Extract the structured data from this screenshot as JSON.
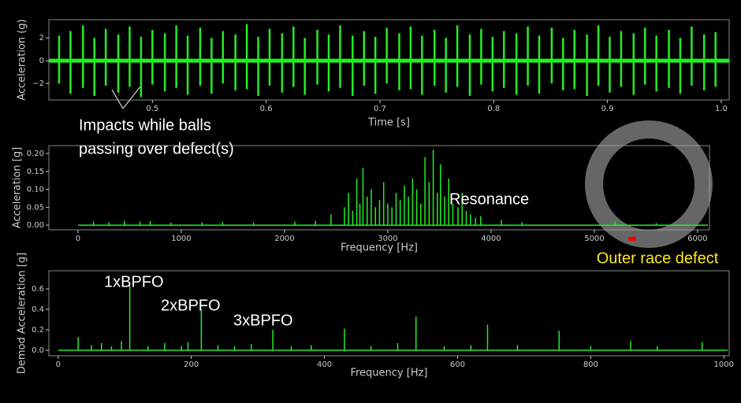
{
  "chart_data": [
    {
      "type": "impulse",
      "xlabel": "Time [s]",
      "ylabel": "Acceleration (g)",
      "color": "#22ee22",
      "xlim": [
        0.409,
        1.007
      ],
      "ylim": [
        -3.45,
        3.6
      ],
      "xticks": [
        0.5,
        0.6,
        0.7,
        0.8,
        0.9,
        {
          "value": 1.0,
          "label": "1.0"
        }
      ],
      "yticks": [
        {
          "value": -2,
          "label": "−2"
        },
        0,
        2
      ],
      "x": [
        0.418,
        0.428,
        0.439,
        0.449,
        0.459,
        0.47,
        0.48,
        0.49,
        0.5,
        0.511,
        0.521,
        0.531,
        0.542,
        0.552,
        0.562,
        0.573,
        0.583,
        0.593,
        0.603,
        0.614,
        0.624,
        0.634,
        0.645,
        0.655,
        0.665,
        0.676,
        0.686,
        0.696,
        0.706,
        0.717,
        0.727,
        0.737,
        0.748,
        0.758,
        0.768,
        0.779,
        0.789,
        0.799,
        0.809,
        0.82,
        0.83,
        0.84,
        0.851,
        0.861,
        0.871,
        0.882,
        0.892,
        0.902,
        0.912,
        0.923,
        0.933,
        0.943,
        0.954,
        0.964,
        0.974,
        0.985,
        0.995
      ],
      "high": [
        2.2,
        2.6,
        3.1,
        2.0,
        2.8,
        2.3,
        3.0,
        2.1,
        2.7,
        2.4,
        3.1,
        2.2,
        2.9,
        2.0,
        2.6,
        2.3,
        3.2,
        2.1,
        2.8,
        2.4,
        3.0,
        2.0,
        2.7,
        2.3,
        3.1,
        2.2,
        2.6,
        2.1,
        2.9,
        2.4,
        3.0,
        2.2,
        2.7,
        2.0,
        3.1,
        2.3,
        2.8,
        2.1,
        2.6,
        2.4,
        3.0,
        2.2,
        2.9,
        2.0,
        2.7,
        2.3,
        3.1,
        2.1,
        2.6,
        2.4,
        2.9,
        2.2,
        2.7,
        2.0,
        3.0,
        2.3,
        2.5
      ],
      "low": [
        -2.0,
        -2.9,
        -2.4,
        -3.1,
        -2.2,
        -2.8,
        -2.3,
        -3.2,
        -2.1,
        -2.7,
        -2.4,
        -3.0,
        -2.2,
        -2.9,
        -2.0,
        -2.6,
        -2.5,
        -3.1,
        -2.2,
        -2.8,
        -2.3,
        -3.0,
        -2.1,
        -2.7,
        -2.4,
        -3.1,
        -2.2,
        -2.9,
        -2.0,
        -2.6,
        -2.5,
        -3.0,
        -2.2,
        -2.8,
        -2.3,
        -3.1,
        -2.1,
        -2.7,
        -2.4,
        -3.0,
        -2.2,
        -2.9,
        -2.0,
        -2.6,
        -2.5,
        -3.1,
        -2.2,
        -2.8,
        -2.3,
        -3.0,
        -2.1,
        -2.7,
        -2.4,
        -2.9,
        -2.2,
        -2.6,
        -2.3
      ],
      "annotation": [
        "Impacts while balls",
        "passing over defect(s)"
      ]
    },
    {
      "type": "stem",
      "xlabel": "Frequency [Hz]",
      "ylabel": "Acceleration [g]",
      "color": "#22ee22",
      "xlim": [
        -282,
        6115
      ],
      "ylim": [
        -0.013,
        0.222
      ],
      "xticks": [
        0,
        1000,
        2000,
        3000,
        4000,
        5000,
        6000
      ],
      "yticks": [
        {
          "value": 0,
          "label": "0.00"
        },
        {
          "value": 0.05,
          "label": "0.05"
        },
        {
          "value": 0.1,
          "label": "0.10"
        },
        {
          "value": 0.15,
          "label": "0.15"
        },
        {
          "value": 0.2,
          "label": "0.20"
        }
      ],
      "x": [
        150,
        300,
        450,
        600,
        700,
        900,
        1200,
        1400,
        1700,
        2100,
        2300,
        2450,
        2580,
        2620,
        2660,
        2700,
        2730,
        2760,
        2800,
        2840,
        2880,
        2920,
        2960,
        3000,
        3040,
        3080,
        3120,
        3160,
        3200,
        3240,
        3280,
        3320,
        3360,
        3400,
        3440,
        3480,
        3510,
        3550,
        3590,
        3630,
        3680,
        3720,
        3760,
        3800,
        3850,
        3900,
        4100,
        4300,
        5200,
        5600
      ],
      "values": [
        0.01,
        0.008,
        0.012,
        0.01,
        0.011,
        0.007,
        0.008,
        0.009,
        0.008,
        0.01,
        0.012,
        0.03,
        0.05,
        0.09,
        0.04,
        0.13,
        0.06,
        0.16,
        0.08,
        0.1,
        0.05,
        0.07,
        0.12,
        0.06,
        0.05,
        0.09,
        0.07,
        0.11,
        0.08,
        0.13,
        0.1,
        0.06,
        0.19,
        0.12,
        0.21,
        0.09,
        0.17,
        0.08,
        0.13,
        0.06,
        0.05,
        0.09,
        0.04,
        0.03,
        0.02,
        0.025,
        0.015,
        0.008,
        0.01,
        0.006
      ],
      "annotation": [
        "Resonance"
      ]
    },
    {
      "type": "stem",
      "xlabel": "Frequency [Hz]",
      "ylabel": "Demod Acceleration [g]",
      "color": "#22ee22",
      "xlim": [
        -14,
        1008
      ],
      "ylim": [
        -0.054,
        0.777
      ],
      "xticks": [
        0,
        200,
        400,
        600,
        800,
        1000
      ],
      "yticks": [
        {
          "value": 0,
          "label": "0.0"
        },
        {
          "value": 0.2,
          "label": "0.2"
        },
        {
          "value": 0.4,
          "label": "0.4"
        },
        {
          "value": 0.6,
          "label": "0.6"
        }
      ],
      "x": [
        30,
        50,
        65,
        80,
        95,
        107.5,
        135,
        160,
        185,
        195,
        215,
        240,
        265,
        290,
        322.5,
        350,
        380,
        430,
        470,
        510,
        537.5,
        580,
        620,
        645,
        690,
        752.5,
        800,
        860,
        900,
        967.5
      ],
      "values": [
        0.13,
        0.05,
        0.07,
        0.04,
        0.09,
        0.63,
        0.04,
        0.07,
        0.04,
        0.08,
        0.4,
        0.05,
        0.04,
        0.06,
        0.2,
        0.04,
        0.05,
        0.21,
        0.04,
        0.07,
        0.33,
        0.04,
        0.05,
        0.25,
        0.05,
        0.19,
        0.04,
        0.09,
        0.04,
        0.08
      ],
      "annotation": [
        "1xBPFO",
        "2xBPFO",
        "3xBPFO"
      ]
    }
  ],
  "diagram": {
    "label": "Outer race defect"
  }
}
